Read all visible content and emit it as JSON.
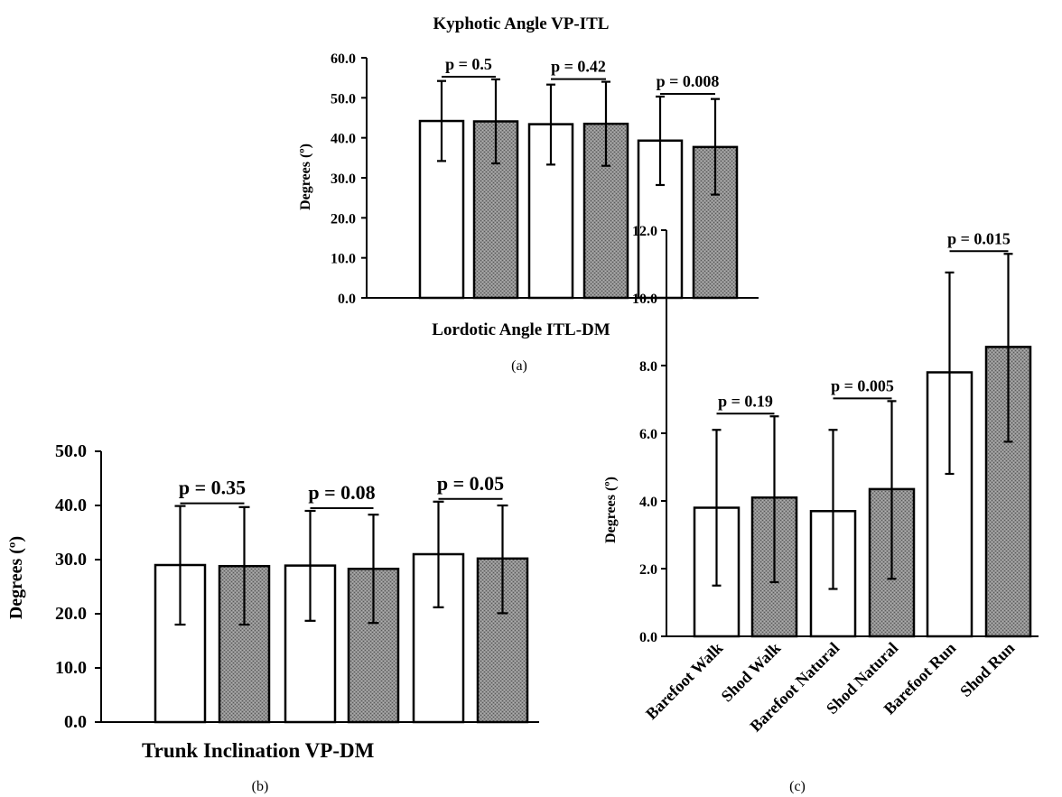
{
  "chart_data": [
    {
      "id": "a",
      "type": "bar",
      "panel_label": "(a)",
      "title": "Kyphotic Angle VP-ITL",
      "xlabel": "Lordotic Angle ITL-DM",
      "ylabel": "Degrees (º)",
      "ylim": [
        0,
        60
      ],
      "yticks": [
        "0.0",
        "10.0",
        "20.0",
        "30.0",
        "40.0",
        "50.0",
        "60.0"
      ],
      "bars": [
        {
          "value": 44.2,
          "err_low": 34.2,
          "err_high": 54.2,
          "fill": "white"
        },
        {
          "value": 44.1,
          "err_low": 33.6,
          "err_high": 54.6,
          "fill": "gray"
        },
        {
          "value": 43.4,
          "err_low": 33.3,
          "err_high": 53.3,
          "fill": "white"
        },
        {
          "value": 43.5,
          "err_low": 33.0,
          "err_high": 54.0,
          "fill": "gray"
        },
        {
          "value": 39.3,
          "err_low": 28.2,
          "err_high": 50.3,
          "fill": "white"
        },
        {
          "value": 37.7,
          "err_low": 25.8,
          "err_high": 49.7,
          "fill": "gray"
        }
      ],
      "pvalues": [
        {
          "label": "p = 0.5",
          "pair": [
            0,
            1
          ]
        },
        {
          "label": "p = 0.42",
          "pair": [
            2,
            3
          ]
        },
        {
          "label": "p = 0.008",
          "pair": [
            4,
            5
          ]
        }
      ]
    },
    {
      "id": "b",
      "type": "bar",
      "panel_label": "(b)",
      "title": "",
      "xlabel": "Trunk Inclination VP-DM",
      "ylabel": "Degrees (º)",
      "ylim": [
        0,
        50
      ],
      "yticks": [
        "0.0",
        "10.0",
        "20.0",
        "30.0",
        "40.0",
        "50.0"
      ],
      "bars": [
        {
          "value": 29.0,
          "err_low": 18.0,
          "err_high": 39.9,
          "fill": "white"
        },
        {
          "value": 28.8,
          "err_low": 18.0,
          "err_high": 39.7,
          "fill": "gray"
        },
        {
          "value": 28.9,
          "err_low": 18.7,
          "err_high": 39.0,
          "fill": "white"
        },
        {
          "value": 28.3,
          "err_low": 18.3,
          "err_high": 38.3,
          "fill": "gray"
        },
        {
          "value": 31.0,
          "err_low": 21.2,
          "err_high": 40.7,
          "fill": "white"
        },
        {
          "value": 30.2,
          "err_low": 20.1,
          "err_high": 40.0,
          "fill": "gray"
        }
      ],
      "pvalues": [
        {
          "label": "p = 0.35",
          "pair": [
            0,
            1
          ]
        },
        {
          "label": "p = 0.08",
          "pair": [
            2,
            3
          ]
        },
        {
          "label": "p = 0.05",
          "pair": [
            4,
            5
          ]
        }
      ]
    },
    {
      "id": "c",
      "type": "bar",
      "panel_label": "(c)",
      "title": "",
      "xlabel": "",
      "ylabel": "Degrees (º)",
      "ylim": [
        0,
        12
      ],
      "yticks": [
        "0.0",
        "2.0",
        "4.0",
        "6.0",
        "8.0",
        "10.0",
        "12.0"
      ],
      "categories": [
        "Barefoot Walk",
        "Shod Walk",
        "Barefoot Natural",
        "Shod Natural",
        "Barefoot Run",
        "Shod Run"
      ],
      "bars": [
        {
          "value": 3.8,
          "err_low": 1.5,
          "err_high": 6.1,
          "fill": "white"
        },
        {
          "value": 4.1,
          "err_low": 1.6,
          "err_high": 6.5,
          "fill": "gray"
        },
        {
          "value": 3.7,
          "err_low": 1.4,
          "err_high": 6.1,
          "fill": "white"
        },
        {
          "value": 4.35,
          "err_low": 1.7,
          "err_high": 6.95,
          "fill": "gray"
        },
        {
          "value": 7.8,
          "err_low": 4.8,
          "err_high": 10.75,
          "fill": "white"
        },
        {
          "value": 8.55,
          "err_low": 5.75,
          "err_high": 11.3,
          "fill": "gray"
        }
      ],
      "pvalues": [
        {
          "label": "p = 0.19",
          "pair": [
            0,
            1
          ]
        },
        {
          "label": "p = 0.005",
          "pair": [
            2,
            3
          ]
        },
        {
          "label": "p = 0.015",
          "pair": [
            4,
            5
          ]
        }
      ]
    }
  ]
}
